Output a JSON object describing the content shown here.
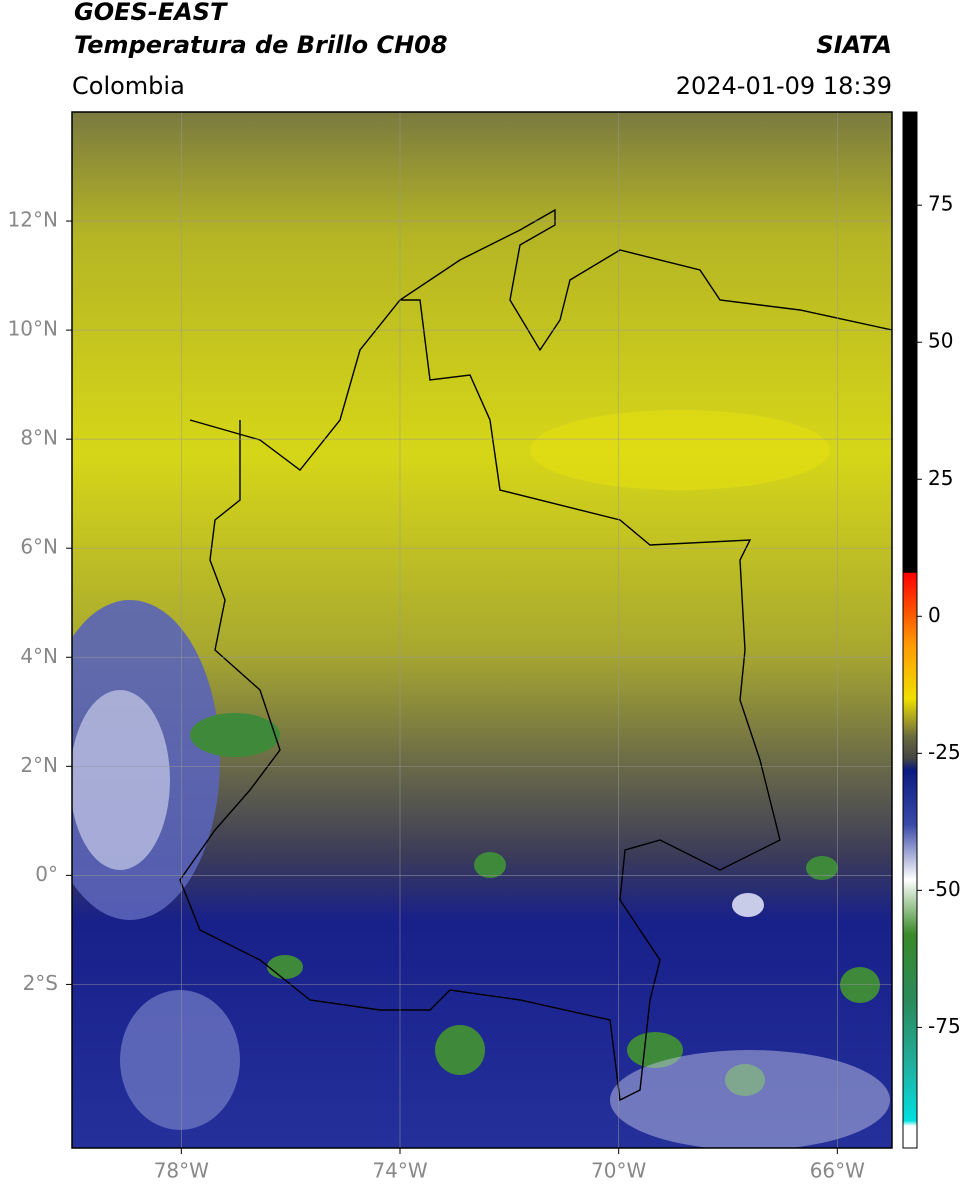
{
  "header": {
    "title_1": "GOES-EAST",
    "title_2": "Temperatura de Brillo CH08",
    "source": "SIATA",
    "region": "Colombia",
    "datetime": "2024-01-09 18:39"
  },
  "map": {
    "xlim": [
      -80,
      -65
    ],
    "ylim": [
      -5,
      14
    ],
    "xticks": [
      {
        "value": -78,
        "label": "78°W"
      },
      {
        "value": -74,
        "label": "74°W"
      },
      {
        "value": -70,
        "label": "70°W"
      },
      {
        "value": -66,
        "label": "66°W"
      }
    ],
    "yticks": [
      {
        "value": -2,
        "label": "2°S"
      },
      {
        "value": 0,
        "label": "0°"
      },
      {
        "value": 2,
        "label": "2°N"
      },
      {
        "value": 4,
        "label": "4°N"
      },
      {
        "value": 6,
        "label": "6°N"
      },
      {
        "value": 8,
        "label": "8°N"
      },
      {
        "value": 10,
        "label": "10°N"
      },
      {
        "value": 12,
        "label": "12°N"
      }
    ],
    "grid": true
  },
  "colorbar": {
    "lim": [
      -97,
      92
    ],
    "ticks": [
      75,
      50,
      25,
      0,
      -25,
      -50,
      -75
    ],
    "stops": [
      {
        "value": 92,
        "color": "#000000"
      },
      {
        "value": 8,
        "color": "#000000"
      },
      {
        "value": 7.9,
        "color": "#ff0000"
      },
      {
        "value": -5,
        "color": "#ff9900"
      },
      {
        "value": -15,
        "color": "#f0e000"
      },
      {
        "value": -22,
        "color": "#6a6a40"
      },
      {
        "value": -26,
        "color": "#444444"
      },
      {
        "value": -28,
        "color": "#0a1a80"
      },
      {
        "value": -38,
        "color": "#3a4aa8"
      },
      {
        "value": -48,
        "color": "#ffffff"
      },
      {
        "value": -58,
        "color": "#3a8a2a"
      },
      {
        "value": -70,
        "color": "#2a8a5a"
      },
      {
        "value": -82,
        "color": "#20b0a0"
      },
      {
        "value": -92,
        "color": "#00e0e0"
      },
      {
        "value": -93,
        "color": "#ffffff"
      },
      {
        "value": -97,
        "color": "#ffffff"
      }
    ]
  }
}
